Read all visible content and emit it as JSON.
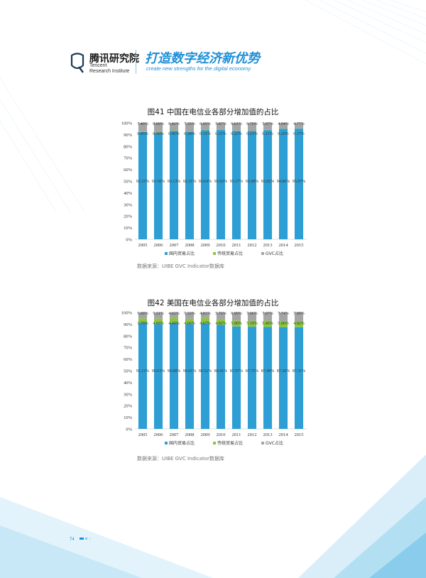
{
  "header": {
    "logo_cn": "腾讯研究院",
    "logo_en_line1": "Tencent",
    "logo_en_line2": "Research Institute",
    "slogan_cn": "打造数字经济新优势",
    "slogan_en": "create new strengths for the digital economy"
  },
  "page": {
    "number": "74"
  },
  "colors": {
    "domestic": "#2e9fd4",
    "traditional": "#8cc63f",
    "gvc": "#a5a5a5",
    "brand": "#1f8fd6"
  },
  "chart_data": [
    {
      "type": "bar",
      "stacked": true,
      "percent_stacked": true,
      "title": "图41  中国在电信业各部分增加值的占比",
      "source": "数据来源：UIBE GVC Indicator数据库",
      "categories": [
        "2005",
        "2006",
        "2007",
        "2008",
        "2009",
        "2010",
        "2011",
        "2012",
        "2013",
        "2014",
        "2015"
      ],
      "yticks": [
        "0%",
        "10%",
        "20%",
        "30%",
        "40%",
        "50%",
        "60%",
        "70%",
        "80%",
        "90%",
        "100%"
      ],
      "ylim": [
        0,
        100
      ],
      "legend_position": "bottom",
      "series": [
        {
          "name": "国内贸易占比",
          "color": "#2e9fd4",
          "values": [
            92.15,
            91.5,
            93.13,
            92.31,
            93.64,
            93.92,
            93.17,
            93.08,
            93.82,
            94.86,
            95.07
          ],
          "labels": [
            "92.15%",
            "91.50%",
            "93.13%",
            "92.31%",
            "93.64%",
            "93.92%",
            "93.17%",
            "93.08%",
            "93.82%",
            "94.86%",
            "95.07%"
          ]
        },
        {
          "name": "传统贸易占比",
          "color": "#8cc63f",
          "values": [
            0.45,
            0.5,
            0.45,
            0.34,
            0.31,
            0.21,
            0.22,
            0.21,
            0.21,
            0.2,
            0.17
          ],
          "labels": [
            "0.45%",
            "0.50%",
            "0.45%",
            "0.34%",
            "0.31%",
            "0.21%",
            "0.22%",
            "0.21%",
            "0.21%",
            "0.20%",
            "0.17%"
          ]
        },
        {
          "name": "GVC占比",
          "color": "#a5a5a5",
          "values": [
            7.4,
            8.0,
            6.42,
            7.35,
            6.05,
            5.87,
            6.61,
            6.7,
            5.97,
            4.94,
            4.77
          ],
          "labels": [
            "7.40%",
            "8.00%",
            "6.42%",
            "7.35%",
            "6.05%",
            "5.87%",
            "6.61%",
            "6.70%",
            "5.97%",
            "4.94%",
            "4.77%"
          ]
        }
      ]
    },
    {
      "type": "bar",
      "stacked": true,
      "percent_stacked": true,
      "title": "图42  美国在电信业各部分增加值的占比",
      "source": "数据来源：UIBE GVC Indicator数据库",
      "categories": [
        "2005",
        "2006",
        "2007",
        "2008",
        "2009",
        "2010",
        "2011",
        "2012",
        "2013",
        "2014",
        "2015"
      ],
      "yticks": [
        "0%",
        "10%",
        "20%",
        "30%",
        "40%",
        "50%",
        "60%",
        "70%",
        "80%",
        "90%",
        "100%"
      ],
      "ylim": [
        0,
        100
      ],
      "legend_position": "bottom",
      "series": [
        {
          "name": "国内贸易占比",
          "color": "#2e9fd4",
          "values": [
            91.12,
            90.03,
            90.88,
            90.01,
            90.52,
            89.41,
            87.97,
            87.75,
            87.48,
            87.2,
            87.31
          ],
          "labels": [
            "91.12%",
            "90.03%",
            "90.88%",
            "90.01%",
            "90.52%",
            "89.41%",
            "87.97%",
            "87.75%",
            "87.48%",
            "87.20%",
            "87.31%"
          ]
        },
        {
          "name": "传统贸易占比",
          "color": "#8cc63f",
          "values": [
            3.79,
            4.66,
            4.49,
            4.66,
            4.67,
            4.82,
            5.06,
            5.19,
            5.46,
            5.06,
            4.92
          ],
          "labels": [
            "3.79%",
            "4.66%",
            "4.49%",
            "4.66%",
            "4.67%",
            "4.82%",
            "5.06%",
            "5.19%",
            "5.46%",
            "5.06%",
            "4.92%"
          ]
        },
        {
          "name": "GVC占比",
          "color": "#a5a5a5",
          "values": [
            5.09,
            5.31,
            4.63,
            5.33,
            4.81,
            5.76,
            6.99,
            7.06,
            7.07,
            7.74,
            7.9
          ],
          "labels": [
            "5.09%",
            "5.31%",
            "4.63%",
            "5.33%",
            "4.81%",
            "5.76%",
            "6.99%",
            "7.06%",
            "7.07%",
            "7.74%",
            "7.90%"
          ]
        }
      ]
    }
  ]
}
